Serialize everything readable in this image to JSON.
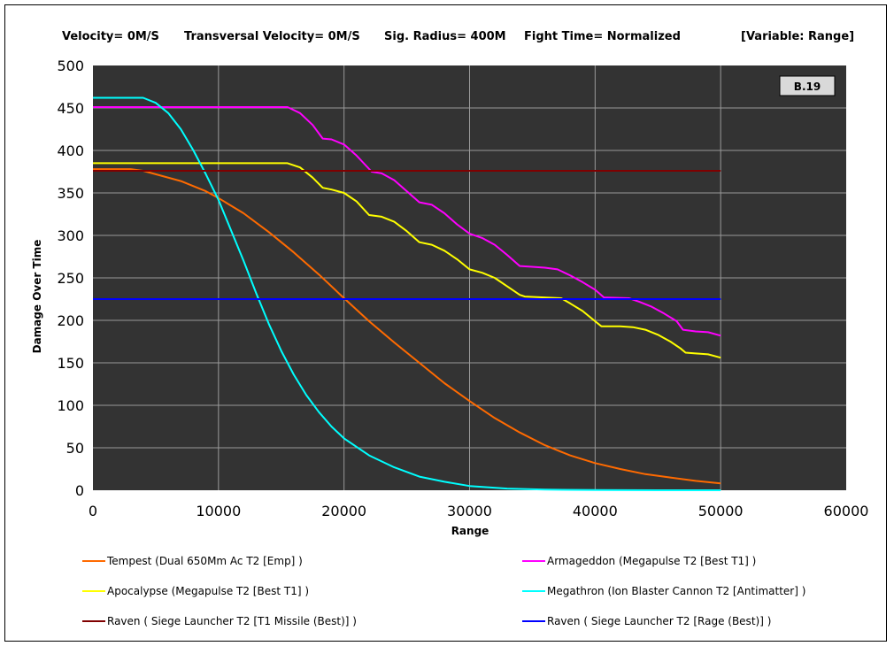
{
  "header": {
    "velocity": "Velocity= 0M/S",
    "transversal": "Transversal Velocity= 0M/S",
    "sig_radius": "Sig. Radius= 400M",
    "fight_time": "Fight Time= Normalized",
    "variable": "[Variable: Range]"
  },
  "badge": "B.19",
  "colors": {
    "plot_bg": "#333333",
    "grid": "#9a9a9a",
    "tempest": "#ff6a00",
    "armageddon": "#ff00ff",
    "apocalypse": "#ffff00",
    "megathron": "#00ffff",
    "raven_t1": "#800000",
    "raven_rage": "#0000ff"
  },
  "chart_data": {
    "type": "line",
    "xlabel": "Range",
    "ylabel": "Damage Over Time",
    "xlim": [
      0,
      60000
    ],
    "ylim": [
      0,
      500
    ],
    "xticks": [
      "0",
      "10000",
      "20000",
      "30000",
      "40000",
      "50000",
      "60000"
    ],
    "yticks": [
      "0",
      "50",
      "100",
      "150",
      "200",
      "250",
      "300",
      "350",
      "400",
      "450",
      "500"
    ],
    "grid": true,
    "legend_position": "bottom",
    "series": [
      {
        "name": "Tempest (Dual 650Mm Ac T2 [Emp] )",
        "color": "#ff6a00",
        "points": [
          [
            0,
            378
          ],
          [
            3000,
            378
          ],
          [
            4000,
            376
          ],
          [
            5000,
            372
          ],
          [
            7000,
            364
          ],
          [
            9000,
            352
          ],
          [
            10000,
            344
          ],
          [
            12000,
            326
          ],
          [
            14000,
            304
          ],
          [
            16000,
            280
          ],
          [
            18000,
            254
          ],
          [
            20000,
            226
          ],
          [
            22000,
            199
          ],
          [
            24000,
            174
          ],
          [
            26000,
            150
          ],
          [
            28000,
            126
          ],
          [
            30000,
            105
          ],
          [
            32000,
            85
          ],
          [
            34000,
            68
          ],
          [
            36000,
            53
          ],
          [
            38000,
            41
          ],
          [
            40000,
            32
          ],
          [
            42000,
            25
          ],
          [
            44000,
            19
          ],
          [
            46000,
            15
          ],
          [
            48000,
            11
          ],
          [
            50000,
            8
          ]
        ]
      },
      {
        "name": "Armageddon (Megapulse T2 [Best T1] )",
        "color": "#ff00ff",
        "points": [
          [
            0,
            451
          ],
          [
            15500,
            451
          ],
          [
            16500,
            444
          ],
          [
            17500,
            430
          ],
          [
            18300,
            414
          ],
          [
            19000,
            413
          ],
          [
            20000,
            407
          ],
          [
            21000,
            394
          ],
          [
            22200,
            375
          ],
          [
            23000,
            373
          ],
          [
            24000,
            365
          ],
          [
            25000,
            352
          ],
          [
            26000,
            339
          ],
          [
            27000,
            336
          ],
          [
            28000,
            326
          ],
          [
            29000,
            313
          ],
          [
            30000,
            302
          ],
          [
            31000,
            297
          ],
          [
            32000,
            289
          ],
          [
            33000,
            277
          ],
          [
            34000,
            264
          ],
          [
            35000,
            263
          ],
          [
            36000,
            262
          ],
          [
            37000,
            260
          ],
          [
            38000,
            253
          ],
          [
            39000,
            245
          ],
          [
            40000,
            236
          ],
          [
            40700,
            227
          ],
          [
            42700,
            226
          ],
          [
            43500,
            222
          ],
          [
            44500,
            216
          ],
          [
            45500,
            208
          ],
          [
            46500,
            199
          ],
          [
            47000,
            189
          ],
          [
            48000,
            187
          ],
          [
            49000,
            186
          ],
          [
            50000,
            182
          ]
        ]
      },
      {
        "name": "Apocalypse (Megapulse T2 [Best T1] )",
        "color": "#ffff00",
        "points": [
          [
            0,
            385
          ],
          [
            15500,
            385
          ],
          [
            16500,
            380
          ],
          [
            17500,
            368
          ],
          [
            18300,
            356
          ],
          [
            19000,
            354
          ],
          [
            20000,
            350
          ],
          [
            21000,
            340
          ],
          [
            22000,
            324
          ],
          [
            23000,
            322
          ],
          [
            24000,
            316
          ],
          [
            25000,
            305
          ],
          [
            26000,
            292
          ],
          [
            27000,
            289
          ],
          [
            28000,
            282
          ],
          [
            29000,
            272
          ],
          [
            30000,
            260
          ],
          [
            31000,
            256
          ],
          [
            32000,
            250
          ],
          [
            33000,
            240
          ],
          [
            34000,
            230
          ],
          [
            34400,
            228
          ],
          [
            37300,
            226
          ],
          [
            38000,
            220
          ],
          [
            39000,
            211
          ],
          [
            40000,
            199
          ],
          [
            40500,
            193
          ],
          [
            42000,
            193
          ],
          [
            43000,
            192
          ],
          [
            44000,
            189
          ],
          [
            45000,
            183
          ],
          [
            46000,
            175
          ],
          [
            46800,
            167
          ],
          [
            47200,
            162
          ],
          [
            48000,
            161
          ],
          [
            49000,
            160
          ],
          [
            50000,
            156
          ]
        ]
      },
      {
        "name": "Megathron (Ion Blaster Cannon T2 [Antimatter] )",
        "color": "#00ffff",
        "points": [
          [
            0,
            462
          ],
          [
            4000,
            462
          ],
          [
            5000,
            456
          ],
          [
            6000,
            444
          ],
          [
            7000,
            425
          ],
          [
            8000,
            400
          ],
          [
            9000,
            372
          ],
          [
            10000,
            342
          ],
          [
            11000,
            306
          ],
          [
            12000,
            270
          ],
          [
            13000,
            232
          ],
          [
            14000,
            196
          ],
          [
            15000,
            164
          ],
          [
            16000,
            136
          ],
          [
            17000,
            112
          ],
          [
            18000,
            92
          ],
          [
            19000,
            75
          ],
          [
            20000,
            61
          ],
          [
            22000,
            41
          ],
          [
            24000,
            27
          ],
          [
            26000,
            16
          ],
          [
            28000,
            10
          ],
          [
            30000,
            5
          ],
          [
            33000,
            2
          ],
          [
            36000,
            0.7
          ],
          [
            40000,
            0.2
          ],
          [
            45000,
            0.05
          ],
          [
            50000,
            0
          ]
        ]
      },
      {
        "name": "Raven ( Siege Launcher T2 [T1 Missile (Best)] )",
        "color": "#800000",
        "points": [
          [
            0,
            376
          ],
          [
            50000,
            376
          ]
        ]
      },
      {
        "name": "Raven ( Siege Launcher T2 [Rage (Best)] )",
        "color": "#0000ff",
        "points": [
          [
            0,
            225
          ],
          [
            50000,
            225
          ]
        ]
      }
    ]
  }
}
